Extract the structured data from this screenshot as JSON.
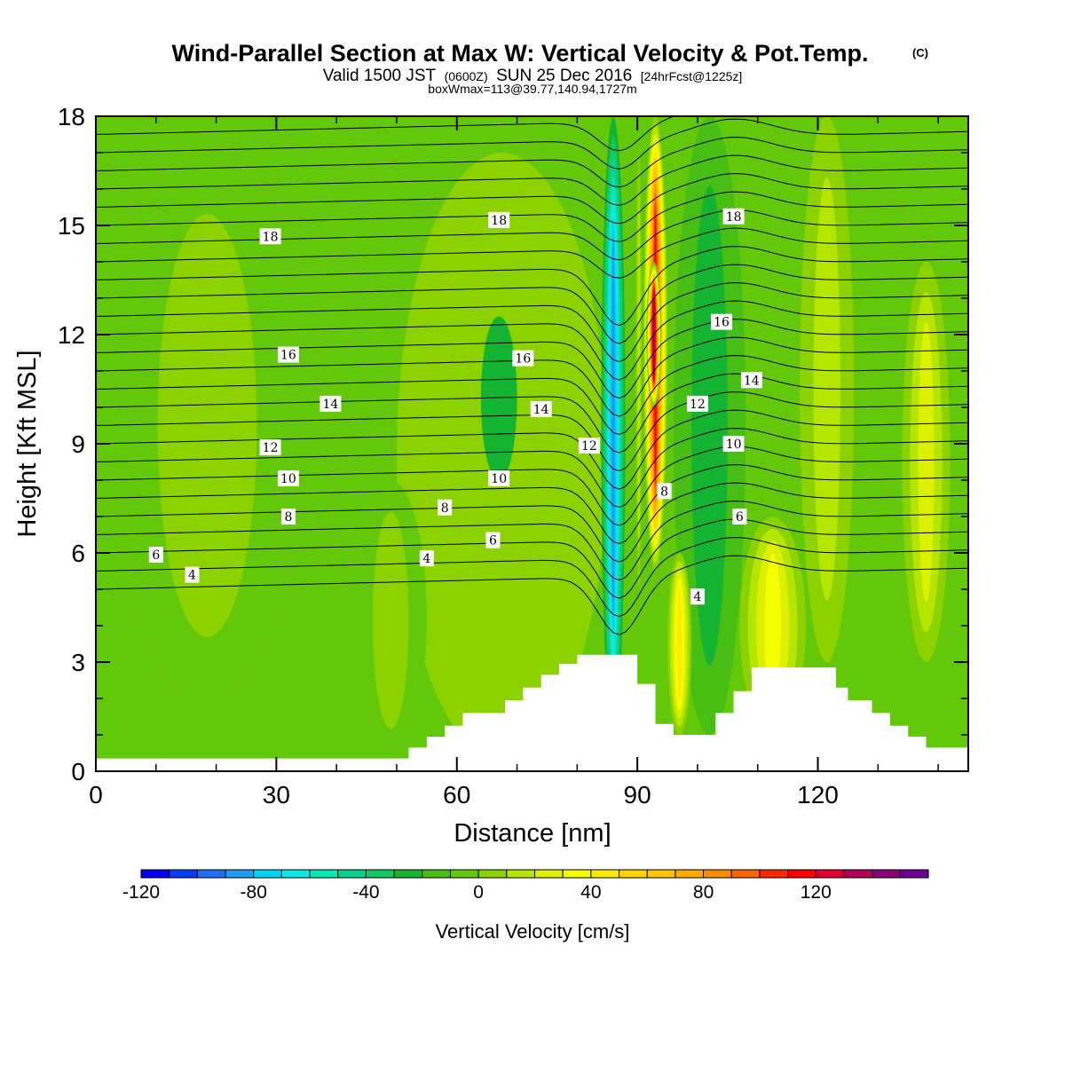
{
  "title": {
    "main": "Wind-Parallel Section at Max W: Vertical Velocity & Pot.Temp.",
    "copyright": "(C)",
    "valid_prefix": "Valid 1500 JST",
    "valid_utc": "(0600Z)",
    "valid_date": "SUN 25 Dec 2016",
    "forecast": "[24hrFcst@1225z]",
    "box_info": "boxWmax=113@39.77,140.94,1727m"
  },
  "chart_data": {
    "type": "heatmap",
    "xlabel": "Distance [nm]",
    "ylabel": "Height [Kft MSL]",
    "xlim": [
      0,
      145
    ],
    "ylim": [
      0,
      18
    ],
    "x_ticks": [
      0,
      30,
      60,
      90,
      120
    ],
    "y_ticks": [
      0,
      3,
      6,
      9,
      12,
      15,
      18
    ],
    "x_tick_labels": [
      "0",
      "30",
      "60",
      "90",
      "120"
    ],
    "y_tick_labels": [
      "0",
      "3",
      "6",
      "9",
      "12",
      "15",
      "18"
    ],
    "colorbar": {
      "title": "Vertical Velocity [cm/s]",
      "min": -120,
      "max": 150,
      "step": 10,
      "labels": [
        "-120",
        "-80",
        "-40",
        "0",
        "40",
        "80",
        "120"
      ],
      "label_values": [
        -120,
        -80,
        -40,
        0,
        40,
        80,
        120
      ],
      "colors": [
        "#0000ee",
        "#0a3cf5",
        "#1e6ef8",
        "#1e9bf5",
        "#00d2f5",
        "#14e6e6",
        "#0ae6b4",
        "#0ad28c",
        "#14c864",
        "#14b432",
        "#46be14",
        "#64c80a",
        "#8cd200",
        "#b4e600",
        "#dcf000",
        "#f5ff00",
        "#ffeb00",
        "#ffd200",
        "#ffc300",
        "#ffaa00",
        "#ff8c00",
        "#ff6400",
        "#ff2800",
        "#ff0000",
        "#dc0032",
        "#b4005a",
        "#8c0078",
        "#6e0096"
      ]
    },
    "terrain": {
      "x": [
        0,
        52,
        52,
        54,
        54,
        55,
        55,
        58,
        58,
        61,
        61,
        68,
        68,
        71,
        71,
        74,
        74,
        77,
        77,
        80,
        80,
        83,
        83,
        90,
        90,
        93,
        93,
        96,
        96,
        99,
        99,
        103,
        103,
        106,
        106,
        109,
        109,
        112,
        112,
        116,
        116,
        123,
        123,
        125,
        125,
        129,
        129,
        132,
        132,
        135,
        135,
        138,
        138,
        141,
        141,
        145
      ],
      "z": [
        0.35,
        0.35,
        0.65,
        0.65,
        0.65,
        0.65,
        0.95,
        0.95,
        1.25,
        1.25,
        1.6,
        1.6,
        1.95,
        1.95,
        2.3,
        2.3,
        2.65,
        2.65,
        2.95,
        2.95,
        3.2,
        3.2,
        3.2,
        3.2,
        2.4,
        2.4,
        1.3,
        1.3,
        1.0,
        1.0,
        1.0,
        1.0,
        1.6,
        1.6,
        2.2,
        2.2,
        2.85,
        2.85,
        2.85,
        2.85,
        2.85,
        2.85,
        2.3,
        2.3,
        1.95,
        1.95,
        1.6,
        1.6,
        1.25,
        1.25,
        0.95,
        0.95,
        0.65,
        0.65,
        0.65,
        0.65
      ]
    },
    "velocity_field": {
      "baseline": -10,
      "cells": [
        {
          "x": [
            2,
            35
          ],
          "z": [
            2,
            17
          ],
          "w": 6
        },
        {
          "x": [
            50,
            85
          ],
          "z": [
            0.3,
            17
          ],
          "w": 4
        },
        {
          "x": [
            43,
            55
          ],
          "z": [
            0.3,
            8
          ],
          "w": 8
        },
        {
          "x": [
            64,
            70
          ],
          "z": [
            8,
            12.5
          ],
          "w": -24
        },
        {
          "x": [
            84,
            88
          ],
          "z": [
            1,
            18
          ],
          "w": -82
        },
        {
          "x": [
            89.5,
            91
          ],
          "z": [
            4,
            18
          ],
          "w": 16
        },
        {
          "x": [
            91,
            95
          ],
          "z": [
            5.5,
            18
          ],
          "w": 110
        },
        {
          "x": [
            91.5,
            94
          ],
          "z": [
            10,
            14
          ],
          "w": 148
        },
        {
          "x": [
            96,
            108
          ],
          "z": [
            1,
            18
          ],
          "w": -30
        },
        {
          "x": [
            95,
            99
          ],
          "z": [
            1,
            6
          ],
          "w": 42
        },
        {
          "x": [
            107,
            118
          ],
          "z": [
            1,
            7
          ],
          "w": 32
        },
        {
          "x": [
            117,
            126
          ],
          "z": [
            3,
            18
          ],
          "w": 12
        },
        {
          "x": [
            134,
            142
          ],
          "z": [
            3,
            14
          ],
          "w": 24
        }
      ]
    },
    "theta_contours": [
      {
        "label": "4",
        "label_x": 16,
        "label_z": 5.4
      },
      {
        "label": "6",
        "label_x": 10,
        "label_z": 5.95
      },
      {
        "label": "8",
        "label_x": 32,
        "label_z": 7
      },
      {
        "label": "10",
        "label_x": 32,
        "label_z": 8.05
      },
      {
        "label": "12",
        "label_x": 29,
        "label_z": 8.9
      },
      {
        "label": "14",
        "label_x": 39,
        "label_z": 10.1
      },
      {
        "label": "16",
        "label_x": 32,
        "label_z": 11.45
      },
      {
        "label": "18",
        "label_x": 29,
        "label_z": 14.7
      },
      {
        "label": "4",
        "label_x": 55,
        "label_z": 5.85
      },
      {
        "label": "6",
        "label_x": 66,
        "label_z": 6.35
      },
      {
        "label": "8",
        "label_x": 58,
        "label_z": 7.25
      },
      {
        "label": "10",
        "label_x": 67,
        "label_z": 8.05
      },
      {
        "label": "14",
        "label_x": 74,
        "label_z": 9.95
      },
      {
        "label": "16",
        "label_x": 71,
        "label_z": 11.35
      },
      {
        "label": "18",
        "label_x": 67,
        "label_z": 15.15
      },
      {
        "label": "12",
        "label_x": 82,
        "label_z": 8.95
      },
      {
        "label": "8",
        "label_x": 94.5,
        "label_z": 7.7
      },
      {
        "label": "4",
        "label_x": 100,
        "label_z": 4.8
      },
      {
        "label": "6",
        "label_x": 107,
        "label_z": 7
      },
      {
        "label": "10",
        "label_x": 106,
        "label_z": 9
      },
      {
        "label": "12",
        "label_x": 100,
        "label_z": 10.1
      },
      {
        "label": "14",
        "label_x": 109,
        "label_z": 10.75
      },
      {
        "label": "16",
        "label_x": 104,
        "label_z": 12.35
      },
      {
        "label": "18",
        "label_x": 106,
        "label_z": 15.25
      }
    ]
  }
}
